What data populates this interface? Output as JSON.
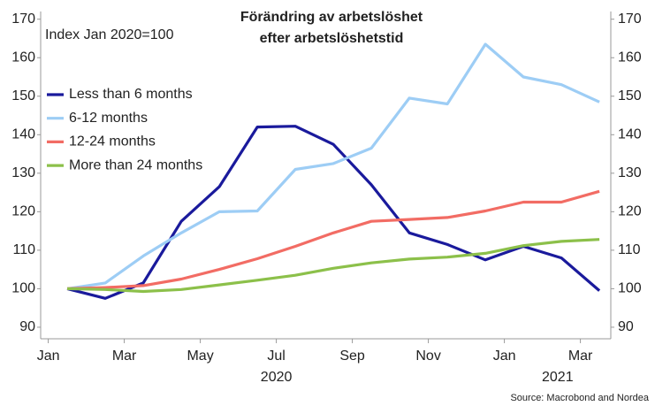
{
  "chart_data": {
    "type": "line",
    "title_lines": [
      "Förändring av arbetslöshet",
      "efter arbetslöshetstid"
    ],
    "annotation": "Index Jan 2020=100",
    "source": "Source: Macrobond and Nordea",
    "x": [
      0.5,
      1.5,
      2.5,
      3.5,
      4.5,
      5.5,
      6.5,
      7.5,
      8.5,
      9.5,
      10.5,
      11.5,
      12.5,
      13.5,
      14.5
    ],
    "xlim": [
      -0.2,
      14.8
    ],
    "xticks": [
      {
        "value": 0,
        "label": "Jan"
      },
      {
        "value": 2,
        "label": "Mar"
      },
      {
        "value": 4,
        "label": "May"
      },
      {
        "value": 6,
        "label": "Jul"
      },
      {
        "value": 8,
        "label": "Sep"
      },
      {
        "value": 10,
        "label": "Nov"
      },
      {
        "value": 12,
        "label": "Jan"
      },
      {
        "value": 14,
        "label": "Mar"
      }
    ],
    "year_labels": [
      {
        "value": 6,
        "label": "2020"
      },
      {
        "value": 13.4,
        "label": "2021"
      }
    ],
    "ylim": [
      87,
      172
    ],
    "yticks": [
      90,
      100,
      110,
      120,
      130,
      140,
      150,
      160,
      170
    ],
    "y2lim": [
      87,
      172
    ],
    "y2ticks": [
      90,
      100,
      110,
      120,
      130,
      140,
      150,
      160,
      170
    ],
    "series": [
      {
        "name": "Less than 6 months",
        "color": "#1a1a9c",
        "values": [
          100,
          97.5,
          101.5,
          117.5,
          126.5,
          142,
          142.2,
          137.5,
          127,
          114.5,
          111.5,
          107.5,
          111,
          108,
          99.5
        ]
      },
      {
        "name": "6-12 months",
        "color": "#9dcdf5",
        "values": [
          100,
          101.5,
          108.5,
          114.5,
          120,
          120.2,
          131,
          132.5,
          136.5,
          149.5,
          148,
          163.5,
          155,
          153,
          148.5
        ]
      },
      {
        "name": "12-24 months",
        "color": "#f26c64",
        "values": [
          100,
          100.3,
          100.8,
          102.5,
          105,
          107.8,
          111,
          114.5,
          117.5,
          118,
          118.5,
          120.2,
          122.5,
          122.5,
          125.3
        ]
      },
      {
        "name": "More than 24 months",
        "color": "#8cc04a",
        "values": [
          100,
          99.8,
          99.3,
          99.8,
          101,
          102.2,
          103.5,
          105.3,
          106.7,
          107.7,
          108.2,
          109.2,
          111.2,
          112.3,
          112.8
        ]
      }
    ]
  }
}
